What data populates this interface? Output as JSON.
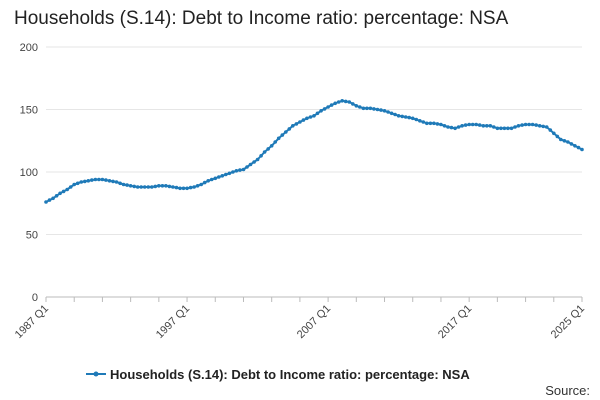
{
  "chart_data": {
    "type": "line",
    "title": "Households (S.14): Debt to Income ratio: percentage: NSA",
    "xlabel": "",
    "ylabel": "",
    "ylim": [
      0,
      200
    ],
    "yticks": [
      0,
      50,
      100,
      150,
      200
    ],
    "x_tick_labels": [
      "1987 Q1",
      "1997 Q1",
      "2007 Q1",
      "2017 Q1",
      "2025 Q1"
    ],
    "grid": true,
    "legend_position": "bottom",
    "series": [
      {
        "name": "Households (S.14): Debt to Income ratio: percentage: NSA",
        "color": "#1f7ab8",
        "points": [
          [
            "1987 Q1",
            76
          ],
          [
            "1987 Q3",
            79
          ],
          [
            "1988 Q1",
            83
          ],
          [
            "1988 Q3",
            86
          ],
          [
            "1989 Q1",
            90
          ],
          [
            "1989 Q3",
            92
          ],
          [
            "1990 Q1",
            93
          ],
          [
            "1990 Q3",
            94
          ],
          [
            "1991 Q1",
            94
          ],
          [
            "1991 Q3",
            93
          ],
          [
            "1992 Q1",
            92
          ],
          [
            "1992 Q3",
            90
          ],
          [
            "1993 Q1",
            89
          ],
          [
            "1993 Q3",
            88
          ],
          [
            "1994 Q1",
            88
          ],
          [
            "1994 Q3",
            88
          ],
          [
            "1995 Q1",
            89
          ],
          [
            "1995 Q3",
            89
          ],
          [
            "1996 Q1",
            88
          ],
          [
            "1996 Q3",
            87
          ],
          [
            "1997 Q1",
            87
          ],
          [
            "1997 Q3",
            88
          ],
          [
            "1998 Q1",
            90
          ],
          [
            "1998 Q3",
            93
          ],
          [
            "1999 Q1",
            95
          ],
          [
            "1999 Q3",
            97
          ],
          [
            "2000 Q1",
            99
          ],
          [
            "2000 Q3",
            101
          ],
          [
            "2001 Q1",
            102
          ],
          [
            "2001 Q3",
            106
          ],
          [
            "2002 Q1",
            110
          ],
          [
            "2002 Q3",
            116
          ],
          [
            "2003 Q1",
            121
          ],
          [
            "2003 Q3",
            127
          ],
          [
            "2004 Q1",
            132
          ],
          [
            "2004 Q3",
            137
          ],
          [
            "2005 Q1",
            140
          ],
          [
            "2005 Q3",
            143
          ],
          [
            "2006 Q1",
            145
          ],
          [
            "2006 Q3",
            149
          ],
          [
            "2007 Q1",
            152
          ],
          [
            "2007 Q3",
            155
          ],
          [
            "2008 Q1",
            157
          ],
          [
            "2008 Q3",
            156
          ],
          [
            "2009 Q1",
            153
          ],
          [
            "2009 Q3",
            151
          ],
          [
            "2010 Q1",
            151
          ],
          [
            "2010 Q3",
            150
          ],
          [
            "2011 Q1",
            149
          ],
          [
            "2011 Q3",
            147
          ],
          [
            "2012 Q1",
            145
          ],
          [
            "2012 Q3",
            144
          ],
          [
            "2013 Q1",
            143
          ],
          [
            "2013 Q3",
            141
          ],
          [
            "2014 Q1",
            139
          ],
          [
            "2014 Q3",
            139
          ],
          [
            "2015 Q1",
            138
          ],
          [
            "2015 Q3",
            136
          ],
          [
            "2016 Q1",
            135
          ],
          [
            "2016 Q3",
            137
          ],
          [
            "2017 Q1",
            138
          ],
          [
            "2017 Q3",
            138
          ],
          [
            "2018 Q1",
            137
          ],
          [
            "2018 Q3",
            137
          ],
          [
            "2019 Q1",
            135
          ],
          [
            "2019 Q3",
            135
          ],
          [
            "2020 Q1",
            135
          ],
          [
            "2020 Q3",
            137
          ],
          [
            "2021 Q1",
            138
          ],
          [
            "2021 Q3",
            138
          ],
          [
            "2022 Q1",
            137
          ],
          [
            "2022 Q3",
            136
          ],
          [
            "2023 Q1",
            131
          ],
          [
            "2023 Q3",
            126
          ],
          [
            "2024 Q1",
            124
          ],
          [
            "2024 Q3",
            121
          ],
          [
            "2025 Q1",
            118
          ]
        ]
      }
    ]
  },
  "footer": {
    "source_label": "Source:"
  }
}
